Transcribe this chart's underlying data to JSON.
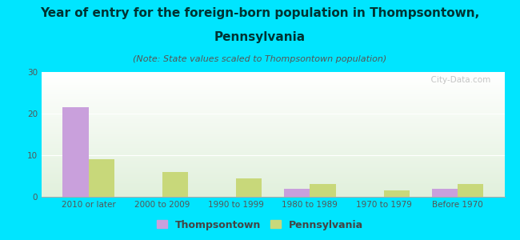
{
  "title_line1": "Year of entry for the foreign-born population in Thompsontown,",
  "title_line2": "Pennsylvania",
  "subtitle": "(Note: State values scaled to Thompsontown population)",
  "categories": [
    "2010 or later",
    "2000 to 2009",
    "1990 to 1999",
    "1980 to 1989",
    "1970 to 1979",
    "Before 1970"
  ],
  "thompsontown_values": [
    21.5,
    0,
    0,
    2,
    0,
    2
  ],
  "pennsylvania_values": [
    9,
    6,
    4.5,
    3,
    1.5,
    3
  ],
  "thompsontown_color": "#c9a0dc",
  "pennsylvania_color": "#c8d87a",
  "background_color": "#00e5ff",
  "ylim": [
    0,
    30
  ],
  "yticks": [
    0,
    10,
    20,
    30
  ],
  "bar_width": 0.35,
  "title_fontsize": 11,
  "subtitle_fontsize": 8,
  "tick_fontsize": 7.5,
  "legend_fontsize": 9,
  "watermark": "  City-Data.com"
}
